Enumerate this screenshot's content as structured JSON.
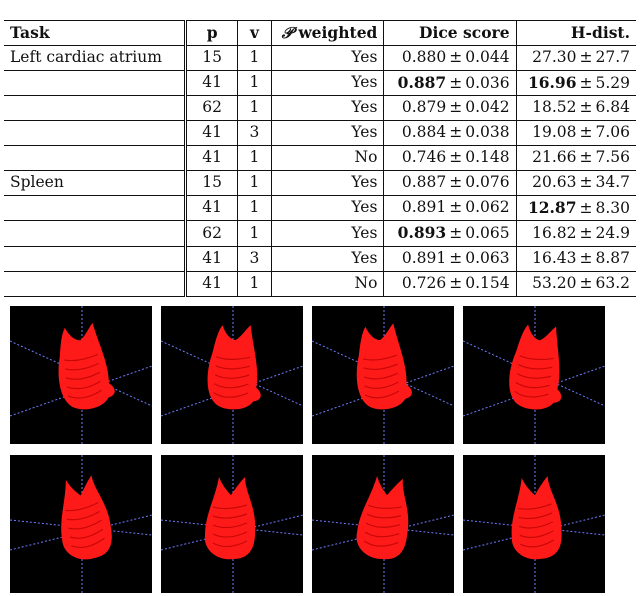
{
  "table": {
    "headers": {
      "task": "Task",
      "p": "p",
      "v": "v",
      "weighted_symbol": "𝒫",
      "weighted_word": " weighted",
      "dice": "Dice score",
      "hdist": "H-dist."
    },
    "rows": [
      {
        "task": "Left cardiac atrium",
        "p": "15",
        "v": "1",
        "weighted": "Yes",
        "dice_mean": "0.880",
        "dice_sd": "0.044",
        "dice_bold": false,
        "h_mean": "27.30",
        "h_sd": "27.7",
        "h_bold": false
      },
      {
        "task": "",
        "p": "41",
        "v": "1",
        "weighted": "Yes",
        "dice_mean": "0.887",
        "dice_sd": "0.036",
        "dice_bold": true,
        "h_mean": "16.96",
        "h_sd": "5.29",
        "h_bold": true
      },
      {
        "task": "",
        "p": "62",
        "v": "1",
        "weighted": "Yes",
        "dice_mean": "0.879",
        "dice_sd": "0.042",
        "dice_bold": false,
        "h_mean": "18.52",
        "h_sd": "6.84",
        "h_bold": false
      },
      {
        "task": "",
        "p": "41",
        "v": "3",
        "weighted": "Yes",
        "dice_mean": "0.884",
        "dice_sd": "0.038",
        "dice_bold": false,
        "h_mean": "19.08",
        "h_sd": "7.06",
        "h_bold": false
      },
      {
        "task": "",
        "p": "41",
        "v": "1",
        "weighted": "No",
        "dice_mean": "0.746",
        "dice_sd": "0.148",
        "dice_bold": false,
        "h_mean": "21.66",
        "h_sd": "7.56",
        "h_bold": false
      },
      {
        "task": "Spleen",
        "p": "15",
        "v": "1",
        "weighted": "Yes",
        "dice_mean": "0.887",
        "dice_sd": "0.076",
        "dice_bold": false,
        "h_mean": "20.63",
        "h_sd": "34.7",
        "h_bold": false
      },
      {
        "task": "",
        "p": "41",
        "v": "1",
        "weighted": "Yes",
        "dice_mean": "0.891",
        "dice_sd": "0.062",
        "dice_bold": false,
        "h_mean": "12.87",
        "h_sd": "8.30",
        "h_bold": true
      },
      {
        "task": "",
        "p": "62",
        "v": "1",
        "weighted": "Yes",
        "dice_mean": "0.893",
        "dice_sd": "0.065",
        "dice_bold": true,
        "h_mean": "16.82",
        "h_sd": "24.9",
        "h_bold": false
      },
      {
        "task": "",
        "p": "41",
        "v": "3",
        "weighted": "Yes",
        "dice_mean": "0.891",
        "dice_sd": "0.063",
        "dice_bold": false,
        "h_mean": "16.43",
        "h_sd": "8.87",
        "h_bold": false
      },
      {
        "task": "",
        "p": "41",
        "v": "1",
        "weighted": "No",
        "dice_mean": "0.726",
        "dice_sd": "0.154",
        "dice_bold": false,
        "h_mean": "53.20",
        "h_sd": "63.2",
        "h_bold": false
      }
    ],
    "pm": "±"
  },
  "figure": {
    "rows": 2,
    "cols": 4,
    "background_color": "#000000",
    "object_color": "#ff1a1a",
    "axis_color": "#6f7cff"
  }
}
